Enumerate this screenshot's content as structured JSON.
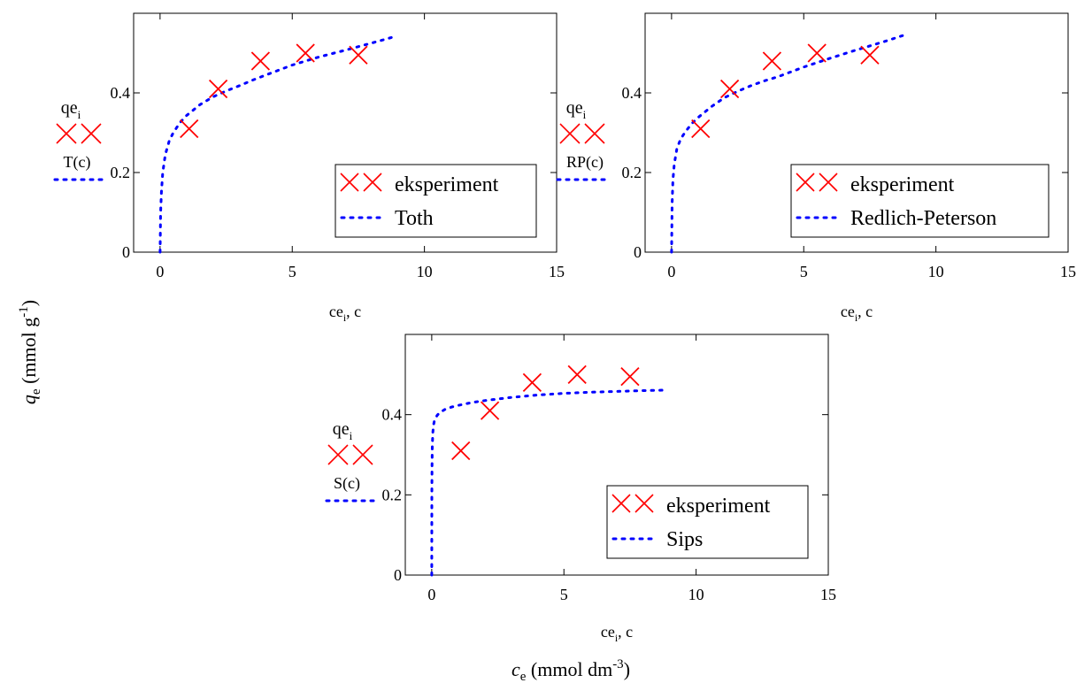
{
  "figure": {
    "xlabel_main": "c",
    "xlabel_sub": "e",
    "xlabel_unit": " (mmol dm",
    "xlabel_sup": "-3",
    "xlabel_close": ")",
    "ylabel_main": "q",
    "ylabel_sub": "e",
    "ylabel_unit": " (mmol g",
    "ylabel_sup": "-1",
    "ylabel_close": ")"
  },
  "colors": {
    "experiment": "#ff0000",
    "model": "#0000ff",
    "axis": "#000000"
  },
  "chart_data": [
    {
      "type": "scatter",
      "xlim": [
        -1,
        15
      ],
      "ylim": [
        0,
        0.6
      ],
      "xticks": [
        0,
        5,
        10,
        15
      ],
      "yticks": [
        0,
        0.2,
        0.4
      ],
      "xtick_labels": [
        "0",
        "5",
        "10",
        "15"
      ],
      "ytick_labels": [
        "0",
        "0.2",
        "0.4"
      ],
      "xlabel": "ce",
      "xlabel_sub": "i",
      "xlabel_suffix": ", c",
      "ylabel_expr1": "qe",
      "ylabel_expr1_sub": "i",
      "ylabel_expr2": "T(c)",
      "legend_position": "bottom-right",
      "series": [
        {
          "name": "eksperiment",
          "kind": "marker",
          "x": [
            1.1,
            2.2,
            3.8,
            5.5,
            7.5
          ],
          "y": [
            0.31,
            0.41,
            0.48,
            0.5,
            0.495
          ]
        },
        {
          "name": "Toth",
          "kind": "dotted-line",
          "x": [
            0,
            0.02,
            0.05,
            0.1,
            0.2,
            0.35,
            0.5,
            0.75,
            1,
            1.5,
            2,
            2.5,
            3,
            3.5,
            4,
            5,
            6,
            7,
            8,
            8.8
          ],
          "y": [
            0,
            0.1,
            0.15,
            0.2,
            0.245,
            0.28,
            0.3,
            0.325,
            0.343,
            0.37,
            0.39,
            0.405,
            0.418,
            0.432,
            0.445,
            0.47,
            0.49,
            0.507,
            0.525,
            0.54
          ]
        }
      ]
    },
    {
      "type": "scatter",
      "xlim": [
        -1,
        15
      ],
      "ylim": [
        0,
        0.6
      ],
      "xticks": [
        0,
        5,
        10,
        15
      ],
      "yticks": [
        0,
        0.2,
        0.4
      ],
      "xtick_labels": [
        "0",
        "5",
        "10",
        "15"
      ],
      "ytick_labels": [
        "0",
        "0.2",
        "0.4"
      ],
      "xlabel": "ce",
      "xlabel_sub": "i",
      "xlabel_suffix": ", c",
      "ylabel_expr1": "qe",
      "ylabel_expr1_sub": "i",
      "ylabel_expr2": "RP(c)",
      "legend_position": "bottom-right",
      "series": [
        {
          "name": "eksperiment",
          "kind": "marker",
          "x": [
            1.1,
            2.2,
            3.8,
            5.5,
            7.5
          ],
          "y": [
            0.31,
            0.41,
            0.48,
            0.5,
            0.495
          ]
        },
        {
          "name": "Redlich-Peterson",
          "kind": "dotted-line",
          "x": [
            0,
            0.02,
            0.05,
            0.1,
            0.2,
            0.35,
            0.5,
            0.75,
            1,
            1.5,
            2,
            2.5,
            3,
            3.5,
            4,
            5,
            6,
            7,
            8,
            8.8
          ],
          "y": [
            0,
            0.12,
            0.18,
            0.22,
            0.26,
            0.285,
            0.3,
            0.322,
            0.338,
            0.365,
            0.388,
            0.404,
            0.418,
            0.43,
            0.44,
            0.465,
            0.487,
            0.508,
            0.528,
            0.545
          ]
        }
      ]
    },
    {
      "type": "scatter",
      "xlim": [
        -1,
        15
      ],
      "ylim": [
        0,
        0.6
      ],
      "xticks": [
        0,
        5,
        10,
        15
      ],
      "yticks": [
        0,
        0.2,
        0.4
      ],
      "xtick_labels": [
        "0",
        "5",
        "10",
        "15"
      ],
      "ytick_labels": [
        "0",
        "0.2",
        "0.4"
      ],
      "xlabel": "ce",
      "xlabel_sub": "i",
      "xlabel_suffix": ", c",
      "ylabel_expr1": "qe",
      "ylabel_expr1_sub": "i",
      "ylabel_expr2": "S(c)",
      "legend_position": "bottom-right",
      "series": [
        {
          "name": "eksperiment",
          "kind": "marker",
          "x": [
            1.1,
            2.2,
            3.8,
            5.5,
            7.5
          ],
          "y": [
            0.31,
            0.41,
            0.48,
            0.5,
            0.495
          ]
        },
        {
          "name": "Sips",
          "kind": "dotted-line",
          "x": [
            0,
            0.005,
            0.01,
            0.02,
            0.04,
            0.07,
            0.1,
            0.2,
            0.3,
            0.5,
            0.75,
            1,
            1.5,
            2,
            3,
            4,
            5,
            6,
            7,
            8,
            8.8
          ],
          "y": [
            0,
            0.2,
            0.27,
            0.32,
            0.355,
            0.375,
            0.385,
            0.398,
            0.405,
            0.413,
            0.419,
            0.423,
            0.43,
            0.435,
            0.443,
            0.449,
            0.453,
            0.456,
            0.458,
            0.46,
            0.461
          ]
        }
      ]
    }
  ]
}
